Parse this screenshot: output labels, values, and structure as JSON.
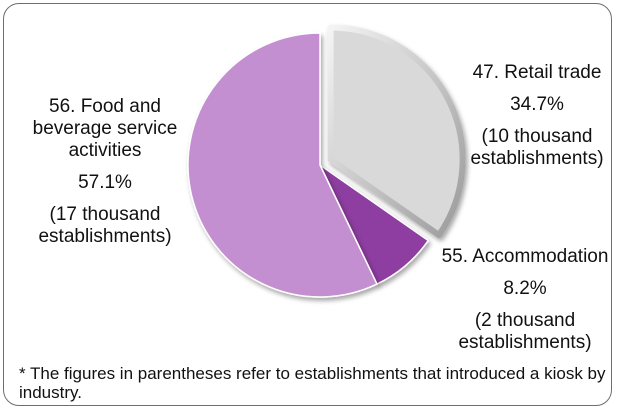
{
  "chart_data": {
    "type": "pie",
    "title": "",
    "slices": [
      {
        "label_lines": [
          "47. Retail trade"
        ],
        "percent_text": "34.7%",
        "count_lines": [
          "(10 thousand",
          "establishments)"
        ],
        "value": 34.7,
        "color": "#d9d9d9"
      },
      {
        "label_lines": [
          "55. Accommodation"
        ],
        "percent_text": "8.2%",
        "count_lines": [
          "(2 thousand",
          "establishments)"
        ],
        "value": 8.2,
        "color": "#8e3da0"
      },
      {
        "label_lines": [
          "56. Food and",
          "beverage service",
          "activities"
        ],
        "percent_text": "57.1%",
        "count_lines": [
          "(17 thousand",
          "establishments)"
        ],
        "value": 57.1,
        "color": "#c48fd0"
      }
    ],
    "start_angle_deg": 0,
    "direction": "clockwise",
    "first_slice_exploded": true
  },
  "footnote": "* The figures in parentheses refer to establishments that introduced a kiosk by industry."
}
